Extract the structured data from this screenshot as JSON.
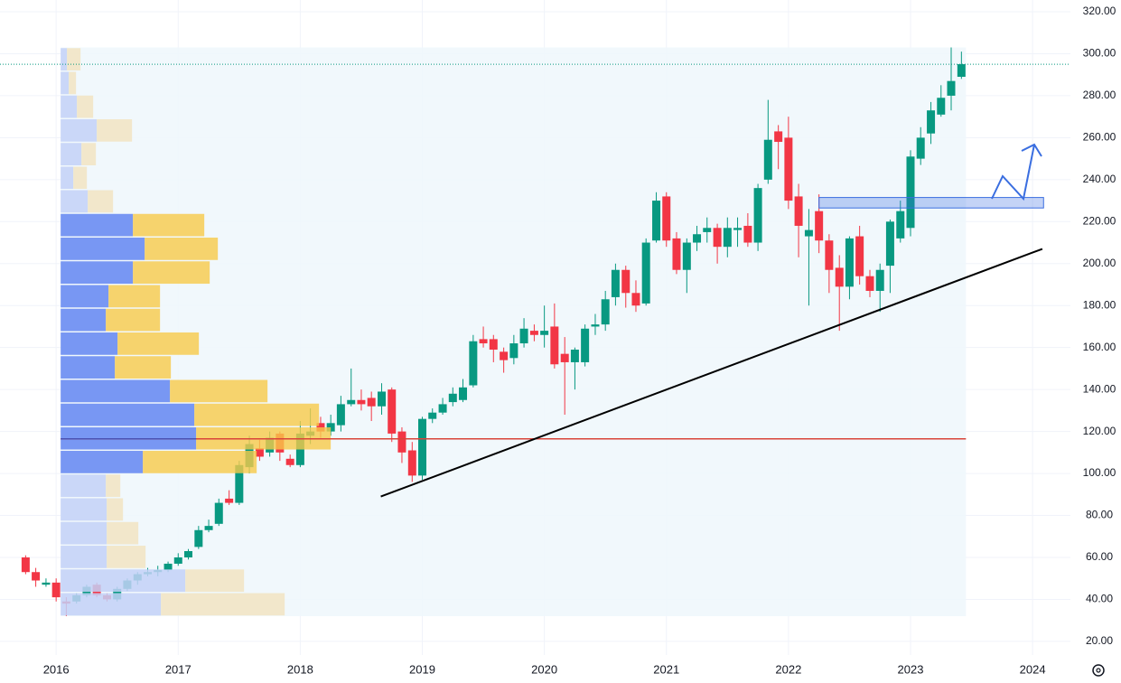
{
  "chart_data": {
    "type": "candlestick",
    "x": [
      2015.75,
      2015.833,
      2015.917,
      2016,
      2016.083,
      2016.167,
      2016.25,
      2016.333,
      2016.417,
      2016.5,
      2016.583,
      2016.667,
      2016.75,
      2016.833,
      2016.917,
      2017,
      2017.083,
      2017.167,
      2017.25,
      2017.333,
      2017.417,
      2017.5,
      2017.583,
      2017.667,
      2017.75,
      2017.833,
      2017.917,
      2018,
      2018.083,
      2018.167,
      2018.25,
      2018.333,
      2018.417,
      2018.5,
      2018.583,
      2018.667,
      2018.75,
      2018.833,
      2018.917,
      2019,
      2019.083,
      2019.167,
      2019.25,
      2019.333,
      2019.417,
      2019.5,
      2019.583,
      2019.667,
      2019.75,
      2019.833,
      2019.917,
      2020,
      2020.083,
      2020.167,
      2020.25,
      2020.333,
      2020.417,
      2020.5,
      2020.583,
      2020.667,
      2020.75,
      2020.833,
      2020.917,
      2021,
      2021.083,
      2021.167,
      2021.25,
      2021.333,
      2021.417,
      2021.5,
      2021.583,
      2021.667,
      2021.75,
      2021.833,
      2021.917,
      2022,
      2022.083,
      2022.167,
      2022.25,
      2022.333,
      2022.417,
      2022.5,
      2022.583,
      2022.667,
      2022.75,
      2022.833,
      2022.917,
      2023,
      2023.083,
      2023.167,
      2023.25,
      2023.333,
      2023.417
    ],
    "open": [
      60,
      53,
      47,
      48,
      39,
      39,
      42,
      47,
      42,
      40,
      45,
      49,
      52,
      53,
      54,
      57,
      60,
      65,
      73,
      76,
      88,
      86,
      103,
      112,
      110,
      119,
      107,
      104,
      118,
      124,
      120,
      123,
      133,
      135,
      136,
      132,
      140,
      120,
      111,
      99,
      126,
      129,
      134,
      135,
      142,
      164,
      164,
      158,
      155,
      162,
      168,
      166,
      170,
      157,
      153,
      153,
      170,
      171,
      184,
      197,
      186,
      181,
      211,
      232,
      212,
      197,
      210,
      215,
      217,
      208,
      216,
      218,
      210,
      240,
      263,
      260,
      232,
      213,
      225,
      211,
      198,
      189,
      213,
      194,
      187,
      199,
      212,
      217,
      250,
      262,
      271,
      280,
      289
    ],
    "high": [
      61,
      55,
      50,
      50,
      41,
      43,
      47,
      48,
      43,
      46,
      50,
      53,
      55,
      56,
      58,
      62,
      64,
      75,
      78,
      88,
      92,
      106,
      118,
      116,
      120,
      120,
      109,
      125,
      131,
      127,
      128,
      137,
      150,
      140,
      139,
      143,
      141,
      122,
      115,
      127,
      131,
      136,
      141,
      145,
      166,
      170,
      166,
      160,
      166,
      174,
      171,
      180,
      181,
      165,
      160,
      171,
      176,
      187,
      200,
      199,
      192,
      212,
      234,
      234,
      215,
      212,
      218,
      222,
      219,
      222,
      222,
      224,
      238,
      278,
      266,
      270,
      238,
      226,
      233,
      214,
      204,
      213,
      218,
      197,
      200,
      221,
      230,
      254,
      265,
      277,
      285,
      303,
      301
    ],
    "low": [
      52,
      46,
      46,
      39,
      32,
      38,
      41,
      41,
      39,
      39,
      44,
      47,
      51,
      51,
      53,
      56,
      59,
      64,
      72,
      75,
      85,
      85,
      100,
      106,
      108,
      106,
      103,
      103,
      114,
      117,
      118,
      120,
      132,
      130,
      125,
      128,
      115,
      105,
      96,
      97,
      124,
      128,
      132,
      134,
      141,
      160,
      153,
      148,
      152,
      160,
      163,
      160,
      150,
      128,
      140,
      151,
      166,
      168,
      180,
      179,
      177,
      180,
      210,
      208,
      195,
      186,
      206,
      210,
      200,
      203,
      208,
      208,
      206,
      238,
      245,
      226,
      203,
      180,
      205,
      186,
      168,
      183,
      190,
      184,
      177,
      186,
      210,
      213,
      247,
      257,
      270,
      273,
      288
    ],
    "close": [
      53,
      49,
      48,
      41,
      38,
      42,
      46,
      42,
      40,
      45,
      49,
      52,
      53,
      54,
      57,
      60,
      63,
      73,
      75,
      86,
      86,
      104,
      114,
      108,
      117,
      110,
      104,
      119,
      120,
      120,
      124,
      133,
      135,
      133,
      132,
      139,
      119,
      110,
      99,
      126,
      129,
      133,
      138,
      141,
      163,
      162,
      159,
      154,
      162,
      169,
      166,
      168,
      152,
      153,
      159,
      169,
      171,
      183,
      197,
      186,
      180,
      210,
      230,
      211,
      197,
      210,
      214,
      217,
      208,
      217,
      217,
      210,
      236,
      259,
      258,
      230,
      218,
      216,
      211,
      197,
      189,
      212,
      194,
      187,
      197,
      220,
      225,
      251,
      260,
      273,
      279,
      287,
      295
    ],
    "up_color": "#089981",
    "down_color": "#f23645",
    "xlim": [
      2015.54,
      2024.31
    ],
    "xticks": [
      2016,
      2017,
      2018,
      2019,
      2020,
      2021,
      2022,
      2023,
      2024
    ],
    "ylim": [
      13.5,
      325.6
    ],
    "yticks": [
      {
        "value": 20,
        "label": "20.00"
      },
      {
        "value": 40,
        "label": "40.00"
      },
      {
        "value": 60,
        "label": "60.00"
      },
      {
        "value": 80,
        "label": "80.00"
      },
      {
        "value": 100,
        "label": "100.00"
      },
      {
        "value": 120,
        "label": "120.00"
      },
      {
        "value": 140,
        "label": "140.00"
      },
      {
        "value": 160,
        "label": "160.00"
      },
      {
        "value": 180,
        "label": "180.00"
      },
      {
        "value": 200,
        "label": "200.00"
      },
      {
        "value": 220,
        "label": "220.00"
      },
      {
        "value": 240,
        "label": "240.00"
      },
      {
        "value": 260,
        "label": "260.00"
      },
      {
        "value": 280,
        "label": "280.00"
      },
      {
        "value": 300,
        "label": "300.00"
      },
      {
        "value": 320,
        "label": "320.00"
      }
    ],
    "grid": true,
    "profile": {
      "bins": [
        32,
        43.3,
        54.6,
        65.9,
        77.2,
        88.5,
        99.8,
        111.1,
        122.3,
        133.6,
        144.9,
        156.2,
        167.5,
        178.8,
        190.1,
        201.4,
        212.7,
        224,
        235.3,
        246.5,
        257.8,
        269.1,
        280.4,
        291.7,
        303
      ],
      "up": [
        111,
        138,
        51,
        51,
        51,
        50,
        91,
        150,
        148,
        121,
        60,
        63,
        50,
        53,
        80,
        93,
        80,
        30,
        14,
        23,
        40,
        18,
        9,
        7
      ],
      "down": [
        137,
        65,
        43,
        35,
        18,
        16,
        126,
        149,
        138,
        108,
        62,
        90,
        60,
        57,
        85,
        81,
        79,
        28,
        15,
        16,
        39,
        18,
        8,
        15
      ],
      "value_area": [
        99.8,
        224
      ],
      "poc": 116.5
    },
    "trendline": {
      "x": [
        2018.66,
        2024.08
      ],
      "y": [
        89,
        207
      ]
    },
    "zone": {
      "x": [
        2022.25,
        2024.09
      ],
      "y": [
        226.5,
        231.5
      ]
    }
  }
}
